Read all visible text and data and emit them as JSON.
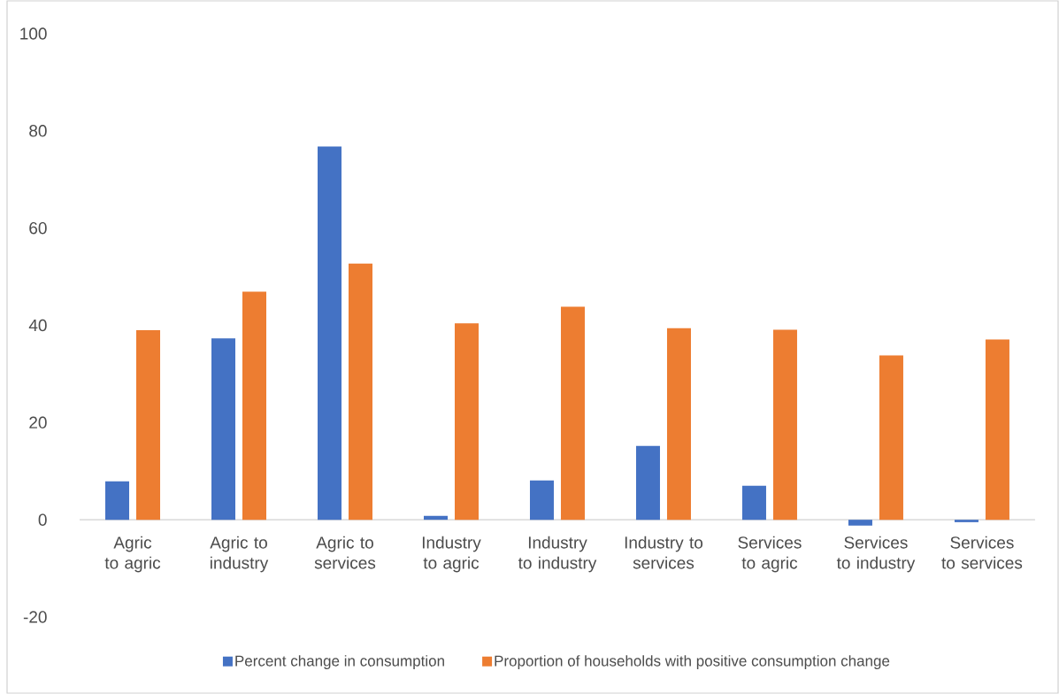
{
  "chart_data": {
    "type": "bar",
    "categories": [
      "Agric to agric",
      "Agric to industry",
      "Agric to services",
      "Industry to agric",
      "Industry to industry",
      "Industry to services",
      "Services to agric",
      "Services to industry",
      "Services to services"
    ],
    "series": [
      {
        "name": "Percent change in consumption",
        "color": "#4472c4",
        "values": [
          7.9,
          37.3,
          76.8,
          0.8,
          8.1,
          15.2,
          7.0,
          -1.2,
          -0.5
        ]
      },
      {
        "name": "Proportion of households with positive consumption change",
        "color": "#ed7d31",
        "values": [
          39.0,
          46.9,
          52.7,
          40.4,
          43.8,
          39.4,
          39.1,
          33.8,
          37.1
        ]
      }
    ],
    "ylim": [
      -20,
      100
    ],
    "yticks": [
      -20,
      0,
      20,
      40,
      60,
      80,
      100
    ],
    "legend": "bottom"
  }
}
